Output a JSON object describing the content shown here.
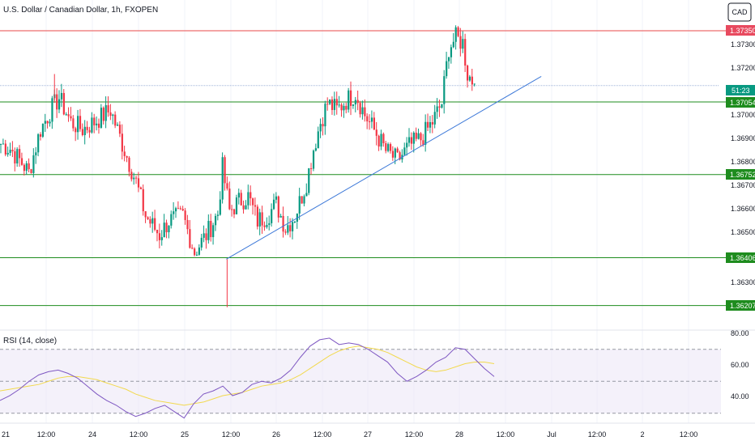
{
  "header": {
    "title": "U.S. Dollar / Canadian Dollar, 1h, FXOPEN",
    "currency_button": "CAD"
  },
  "price_axis": {
    "ticks": [
      "1.37300",
      "1.37200",
      "1.37000",
      "1.36900",
      "1.36800",
      "1.36700",
      "1.36600",
      "1.36500",
      "1.36300"
    ]
  },
  "badges": {
    "res_top": "1.37350",
    "countdown": "51:23",
    "level_1": "1.37054",
    "level_2": "1.36752",
    "level_3": "1.36406",
    "level_4": "1.36207"
  },
  "rsi": {
    "label": "RSI (14, close)",
    "ticks": [
      "80.00",
      "60.00",
      "40.00"
    ]
  },
  "time_axis": {
    "labels": [
      "21",
      "12:00",
      "24",
      "12:00",
      "25",
      "12:00",
      "26",
      "12:00",
      "27",
      "12:00",
      "28",
      "12:00",
      "Jul",
      "12:00",
      "2",
      "12:00"
    ]
  },
  "colors": {
    "up": "#089981",
    "down": "#f23645",
    "support": "#1e8c1e",
    "resistance": "#e84a4a",
    "trendline": "#3c78d8",
    "rsi_line": "#7e57c2",
    "rsi_ma": "#f2d94e",
    "rsi_band": "#ede7f6"
  },
  "chart_data": {
    "type": "candlestick",
    "title": "U.S. Dollar / Canadian Dollar, 1h, FXOPEN",
    "y_range": [
      1.3615,
      1.3745
    ],
    "horizontal_levels": [
      {
        "value": 1.3735,
        "kind": "resistance"
      },
      {
        "value": 1.37054,
        "kind": "support"
      },
      {
        "value": 1.36752,
        "kind": "support"
      },
      {
        "value": 1.36406,
        "kind": "support"
      },
      {
        "value": 1.36207,
        "kind": "support"
      }
    ],
    "trendline": {
      "from": {
        "bar": 97,
        "price": 1.364
      },
      "to": {
        "bar": 232,
        "price": 1.3716
      }
    },
    "current_price": 1.37122,
    "path": [
      [
        0,
        1.3688
      ],
      [
        4,
        1.3686
      ],
      [
        9,
        1.368
      ],
      [
        12,
        1.3676
      ],
      [
        17,
        1.3694
      ],
      [
        22,
        1.3703
      ],
      [
        25,
        1.3707
      ],
      [
        30,
        1.3697
      ],
      [
        35,
        1.3694
      ],
      [
        40,
        1.3697
      ],
      [
        47,
        1.3702
      ],
      [
        52,
        1.3688
      ],
      [
        58,
        1.3672
      ],
      [
        62,
        1.3658
      ],
      [
        68,
        1.365
      ],
      [
        72,
        1.3656
      ],
      [
        78,
        1.3658
      ],
      [
        83,
        1.3643
      ],
      [
        88,
        1.365
      ],
      [
        93,
        1.3659
      ],
      [
        95,
        1.3678
      ],
      [
        98,
        1.366
      ],
      [
        102,
        1.3664
      ],
      [
        106,
        1.3666
      ],
      [
        110,
        1.3656
      ],
      [
        114,
        1.3658
      ],
      [
        118,
        1.3663
      ],
      [
        122,
        1.3653
      ],
      [
        126,
        1.3658
      ],
      [
        131,
        1.3672
      ],
      [
        134,
        1.3686
      ],
      [
        137,
        1.3697
      ],
      [
        140,
        1.3705
      ],
      [
        144,
        1.3702
      ],
      [
        148,
        1.3706
      ],
      [
        152,
        1.3709
      ],
      [
        156,
        1.37
      ],
      [
        161,
        1.3692
      ],
      [
        165,
        1.3685
      ],
      [
        170,
        1.3681
      ],
      [
        175,
        1.3687
      ],
      [
        180,
        1.369
      ],
      [
        185,
        1.3697
      ],
      [
        189,
        1.3705
      ],
      [
        192,
        1.3728
      ],
      [
        195,
        1.3732
      ],
      [
        198,
        1.373
      ],
      [
        200,
        1.3717
      ],
      [
        203,
        1.3713
      ]
    ],
    "rsi_values": [
      38,
      41,
      45,
      50,
      54,
      56,
      57,
      55,
      52,
      47,
      42,
      38,
      35,
      31,
      28,
      30,
      33,
      35,
      31,
      27,
      36,
      42,
      44,
      47,
      41,
      43,
      48,
      50,
      49,
      52,
      57,
      65,
      72,
      76,
      77,
      73,
      74,
      73,
      70,
      66,
      62,
      55,
      50,
      53,
      57,
      62,
      65,
      71,
      70,
      64,
      58,
      53
    ],
    "rsi_ma_values": [
      44,
      45,
      46,
      47,
      48,
      50,
      52,
      53,
      53,
      52,
      51,
      49,
      47,
      45,
      42,
      40,
      38,
      37,
      36,
      35,
      36,
      37,
      39,
      41,
      42,
      43,
      45,
      47,
      48,
      49,
      51,
      54,
      58,
      62,
      66,
      69,
      71,
      72,
      71,
      70,
      68,
      65,
      62,
      59,
      57,
      56,
      57,
      59,
      61,
      62,
      62,
      61
    ],
    "rsi_range": [
      27,
      86
    ],
    "rsi_band": [
      30,
      70
    ]
  }
}
